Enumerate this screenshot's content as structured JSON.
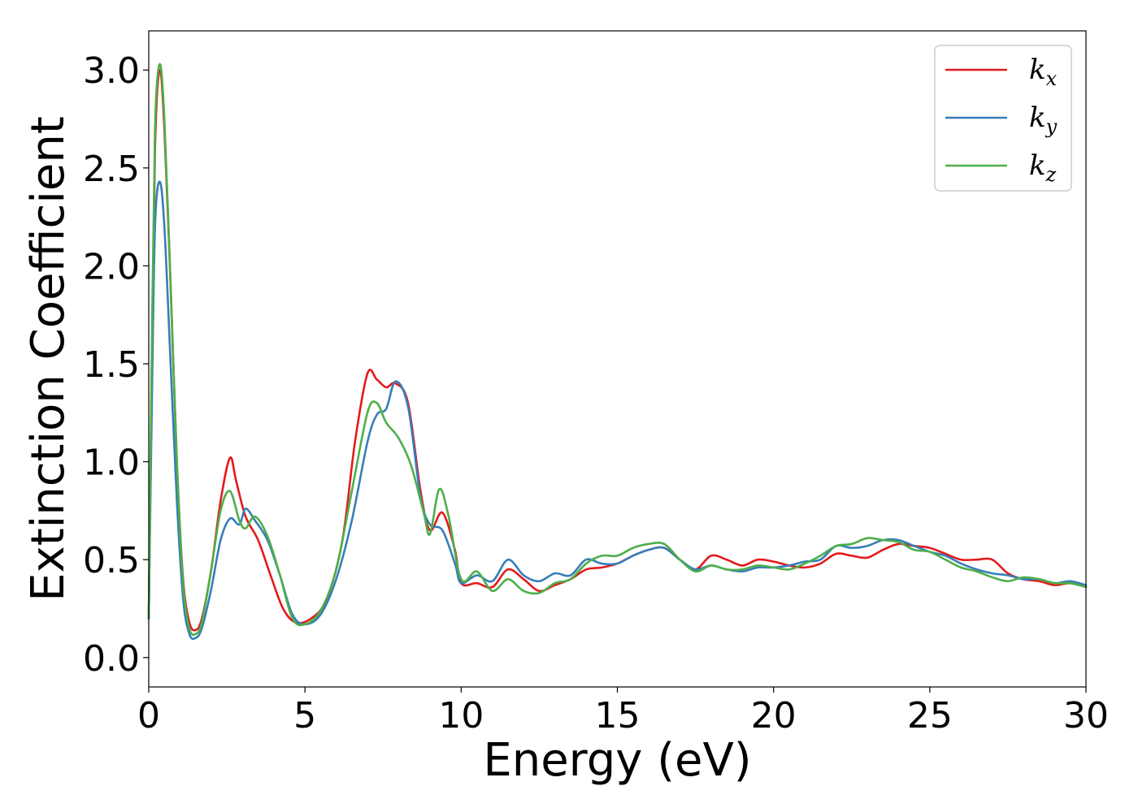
{
  "chart_data": {
    "type": "line",
    "xlabel": "Energy (eV)",
    "ylabel": "Extinction Coefficient",
    "xlim": [
      0,
      30
    ],
    "ylim": [
      -0.15,
      3.2
    ],
    "xticks": [
      0,
      5,
      10,
      15,
      20,
      25,
      30
    ],
    "xtick_labels": [
      "0",
      "5",
      "10",
      "15",
      "20",
      "25",
      "30"
    ],
    "yticks": [
      0.0,
      0.5,
      1.0,
      1.5,
      2.0,
      2.5,
      3.0
    ],
    "ytick_labels": [
      "0.0",
      "0.5",
      "1.0",
      "1.5",
      "2.0",
      "2.5",
      "3.0"
    ],
    "grid": false,
    "legend_position": "top-right",
    "series": [
      {
        "name": "k_x",
        "label_base": "k",
        "label_sub": "x",
        "color": "#e41a1c",
        "x": [
          0,
          0.1,
          0.2,
          0.35,
          0.5,
          0.7,
          0.9,
          1.1,
          1.3,
          1.5,
          1.7,
          2.0,
          2.3,
          2.6,
          2.8,
          3.1,
          3.5,
          3.9,
          4.3,
          4.7,
          5.2,
          5.7,
          6.2,
          6.6,
          7.0,
          7.3,
          7.6,
          7.9,
          8.3,
          8.7,
          9.0,
          9.4,
          9.8,
          10.0,
          10.5,
          11.0,
          11.5,
          12.0,
          12.5,
          13.0,
          13.5,
          14.0,
          14.5,
          15.0,
          15.5,
          16.0,
          16.5,
          17.0,
          17.5,
          18.0,
          18.5,
          19.0,
          19.5,
          20.0,
          20.5,
          21.0,
          21.5,
          22.0,
          22.5,
          23.0,
          23.5,
          24.0,
          24.5,
          25.0,
          25.5,
          26.0,
          26.5,
          27.0,
          27.5,
          28.0,
          28.5,
          29.0,
          29.5,
          30.0
        ],
        "y": [
          0.2,
          1.5,
          2.6,
          3.0,
          2.7,
          1.9,
          1.0,
          0.4,
          0.18,
          0.14,
          0.2,
          0.45,
          0.8,
          1.02,
          0.9,
          0.72,
          0.6,
          0.42,
          0.25,
          0.18,
          0.2,
          0.3,
          0.6,
          1.1,
          1.45,
          1.42,
          1.38,
          1.4,
          1.3,
          0.85,
          0.65,
          0.74,
          0.55,
          0.38,
          0.38,
          0.36,
          0.45,
          0.4,
          0.34,
          0.37,
          0.4,
          0.45,
          0.46,
          0.48,
          0.52,
          0.55,
          0.56,
          0.5,
          0.45,
          0.52,
          0.5,
          0.47,
          0.5,
          0.49,
          0.47,
          0.46,
          0.48,
          0.53,
          0.52,
          0.51,
          0.55,
          0.58,
          0.57,
          0.56,
          0.53,
          0.5,
          0.5,
          0.5,
          0.43,
          0.4,
          0.39,
          0.37,
          0.38,
          0.36
        ]
      },
      {
        "name": "k_y",
        "label_base": "k",
        "label_sub": "y",
        "color": "#377eb8",
        "x": [
          0,
          0.1,
          0.2,
          0.35,
          0.5,
          0.7,
          0.9,
          1.1,
          1.3,
          1.5,
          1.7,
          2.0,
          2.3,
          2.6,
          2.9,
          3.1,
          3.4,
          3.8,
          4.2,
          4.6,
          5.0,
          5.5,
          6.0,
          6.5,
          7.0,
          7.3,
          7.6,
          7.9,
          8.3,
          8.7,
          9.0,
          9.4,
          9.8,
          10.0,
          10.5,
          11.0,
          11.5,
          12.0,
          12.5,
          13.0,
          13.5,
          14.0,
          14.5,
          15.0,
          15.5,
          16.0,
          16.5,
          17.0,
          17.5,
          18.0,
          18.5,
          19.0,
          19.5,
          20.0,
          20.5,
          21.0,
          21.5,
          22.0,
          22.5,
          23.0,
          23.5,
          24.0,
          24.5,
          25.0,
          25.5,
          26.0,
          26.5,
          27.0,
          27.5,
          28.0,
          28.5,
          29.0,
          29.5,
          30.0
        ],
        "y": [
          0.2,
          1.3,
          2.2,
          2.43,
          2.2,
          1.5,
          0.8,
          0.3,
          0.12,
          0.1,
          0.15,
          0.35,
          0.6,
          0.71,
          0.68,
          0.76,
          0.7,
          0.6,
          0.42,
          0.22,
          0.17,
          0.22,
          0.4,
          0.7,
          1.1,
          1.24,
          1.27,
          1.41,
          1.28,
          0.82,
          0.68,
          0.65,
          0.48,
          0.38,
          0.42,
          0.39,
          0.5,
          0.42,
          0.39,
          0.43,
          0.42,
          0.5,
          0.48,
          0.48,
          0.52,
          0.55,
          0.56,
          0.5,
          0.45,
          0.47,
          0.45,
          0.44,
          0.46,
          0.46,
          0.47,
          0.49,
          0.5,
          0.57,
          0.56,
          0.57,
          0.6,
          0.6,
          0.57,
          0.54,
          0.52,
          0.48,
          0.45,
          0.43,
          0.42,
          0.4,
          0.4,
          0.38,
          0.39,
          0.37
        ]
      },
      {
        "name": "k_z",
        "label_base": "k",
        "label_sub": "z",
        "color": "#4daf4a",
        "x": [
          0,
          0.1,
          0.2,
          0.35,
          0.5,
          0.7,
          0.9,
          1.1,
          1.3,
          1.5,
          1.7,
          2.0,
          2.3,
          2.6,
          2.9,
          3.1,
          3.4,
          3.8,
          4.2,
          4.6,
          5.0,
          5.5,
          6.0,
          6.5,
          7.0,
          7.3,
          7.6,
          8.0,
          8.4,
          8.8,
          9.0,
          9.3,
          9.6,
          10.0,
          10.5,
          11.0,
          11.5,
          12.0,
          12.5,
          13.0,
          13.5,
          14.0,
          14.5,
          15.0,
          15.5,
          16.0,
          16.5,
          17.0,
          17.5,
          18.0,
          18.5,
          19.0,
          19.5,
          20.0,
          20.5,
          21.0,
          21.5,
          22.0,
          22.5,
          23.0,
          23.5,
          24.0,
          24.5,
          25.0,
          25.5,
          26.0,
          26.5,
          27.0,
          27.5,
          28.0,
          28.5,
          29.0,
          29.5,
          30.0
        ],
        "y": [
          0.2,
          1.6,
          2.7,
          3.03,
          2.75,
          1.9,
          1.0,
          0.38,
          0.15,
          0.12,
          0.18,
          0.45,
          0.75,
          0.85,
          0.7,
          0.66,
          0.72,
          0.62,
          0.42,
          0.2,
          0.17,
          0.24,
          0.45,
          0.85,
          1.25,
          1.3,
          1.2,
          1.12,
          0.98,
          0.74,
          0.63,
          0.86,
          0.72,
          0.4,
          0.44,
          0.34,
          0.4,
          0.34,
          0.33,
          0.38,
          0.4,
          0.48,
          0.52,
          0.52,
          0.56,
          0.58,
          0.58,
          0.5,
          0.44,
          0.47,
          0.45,
          0.45,
          0.47,
          0.46,
          0.45,
          0.48,
          0.52,
          0.57,
          0.58,
          0.61,
          0.6,
          0.59,
          0.55,
          0.54,
          0.5,
          0.46,
          0.44,
          0.41,
          0.39,
          0.41,
          0.4,
          0.38,
          0.38,
          0.36
        ]
      }
    ]
  }
}
